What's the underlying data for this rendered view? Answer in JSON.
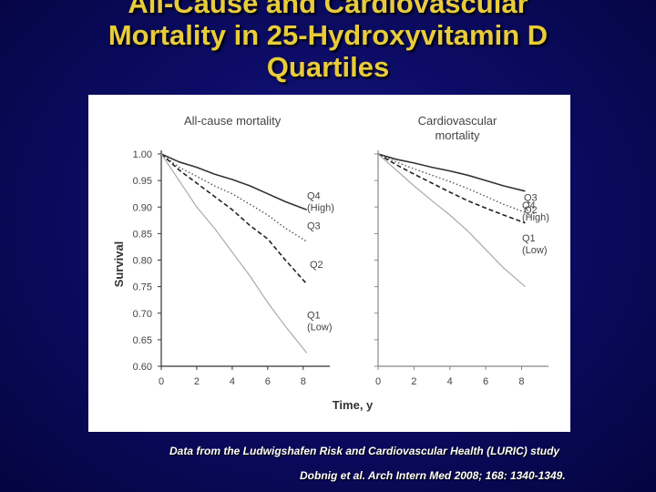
{
  "slide": {
    "title_lines": [
      "All-Cause and Cardiovascular",
      "Mortality in 25-Hydroxyvitamin D",
      "Quartiles"
    ],
    "caption_source": "Data from the Ludwigshafen Risk and Cardiovascular Health (LURIC) study",
    "caption_citation": "Dobnig et al. Arch Intern Med 2008; 168: 1340-1349."
  },
  "chart_data": [
    {
      "type": "line",
      "title": "All-cause mortality",
      "xlabel": "Time, y",
      "ylabel": "Survival",
      "xlim": [
        0,
        9.5
      ],
      "ylim": [
        0.6,
        1.0
      ],
      "xticks": [
        "0",
        "2",
        "4",
        "6",
        "8"
      ],
      "yticks": [
        "1.00",
        "0.95",
        "0.90",
        "0.85",
        "0.80",
        "0.75",
        "0.70",
        "0.65",
        "0.60"
      ],
      "series": [
        {
          "name": "Q4 (High)",
          "label_lines": [
            "Q4",
            "(High)"
          ],
          "style": "solid-dark",
          "x": [
            0,
            1,
            2,
            3,
            4,
            5,
            6,
            7,
            8.2
          ],
          "y": [
            1.0,
            0.985,
            0.975,
            0.962,
            0.952,
            0.94,
            0.925,
            0.91,
            0.895
          ]
        },
        {
          "name": "Q3",
          "label_lines": [
            "Q3"
          ],
          "style": "dotted",
          "x": [
            0,
            1,
            2,
            3,
            4,
            5,
            6,
            7,
            8.2
          ],
          "y": [
            1.0,
            0.975,
            0.958,
            0.94,
            0.925,
            0.905,
            0.885,
            0.86,
            0.835
          ]
        },
        {
          "name": "Q2",
          "label_lines": [
            "Q2"
          ],
          "style": "dashed",
          "x": [
            0,
            1,
            2,
            3,
            4,
            5,
            6,
            7,
            8.2
          ],
          "y": [
            1.0,
            0.97,
            0.945,
            0.92,
            0.895,
            0.865,
            0.84,
            0.8,
            0.755
          ]
        },
        {
          "name": "Q1 (Low)",
          "label_lines": [
            "Q1",
            "(Low)"
          ],
          "style": "solid-light",
          "x": [
            0,
            1,
            2,
            3,
            4,
            5,
            6,
            7,
            8.2
          ],
          "y": [
            1.0,
            0.95,
            0.9,
            0.86,
            0.815,
            0.77,
            0.72,
            0.675,
            0.625
          ]
        }
      ]
    },
    {
      "type": "line",
      "title": "Cardiovascular mortality",
      "title_lines": [
        "Cardiovascular",
        "mortality"
      ],
      "xlabel": "Time, y",
      "ylabel": "Survival",
      "xlim": [
        0,
        9.5
      ],
      "ylim": [
        0.6,
        1.0
      ],
      "xticks": [
        "0",
        "2",
        "4",
        "6",
        "8"
      ],
      "series": [
        {
          "name": "Q4 (High)",
          "label_lines": [
            "Q4",
            "(High)"
          ],
          "style": "solid-dark",
          "x": [
            0,
            1,
            2,
            3,
            4,
            5,
            6,
            7,
            8.2
          ],
          "y": [
            1.0,
            0.99,
            0.983,
            0.975,
            0.968,
            0.96,
            0.95,
            0.94,
            0.93
          ]
        },
        {
          "name": "Q3",
          "label_lines": [
            "Q3"
          ],
          "style": "dotted",
          "x": [
            0,
            1,
            2,
            3,
            4,
            5,
            6,
            7,
            8.2
          ],
          "y": [
            1.0,
            0.985,
            0.972,
            0.96,
            0.948,
            0.935,
            0.92,
            0.905,
            0.89
          ]
        },
        {
          "name": "Q2",
          "label_lines": [
            "Q2"
          ],
          "style": "dashed",
          "x": [
            0,
            1,
            2,
            3,
            4,
            5,
            6,
            7,
            8.2
          ],
          "y": [
            1.0,
            0.98,
            0.962,
            0.945,
            0.928,
            0.912,
            0.898,
            0.885,
            0.87
          ]
        },
        {
          "name": "Q1 (Low)",
          "label_lines": [
            "Q1",
            "(Low)"
          ],
          "style": "solid-light",
          "x": [
            0,
            1,
            2,
            3,
            4,
            5,
            6,
            7,
            8.2
          ],
          "y": [
            1.0,
            0.97,
            0.94,
            0.912,
            0.885,
            0.855,
            0.82,
            0.785,
            0.75
          ]
        }
      ]
    }
  ]
}
